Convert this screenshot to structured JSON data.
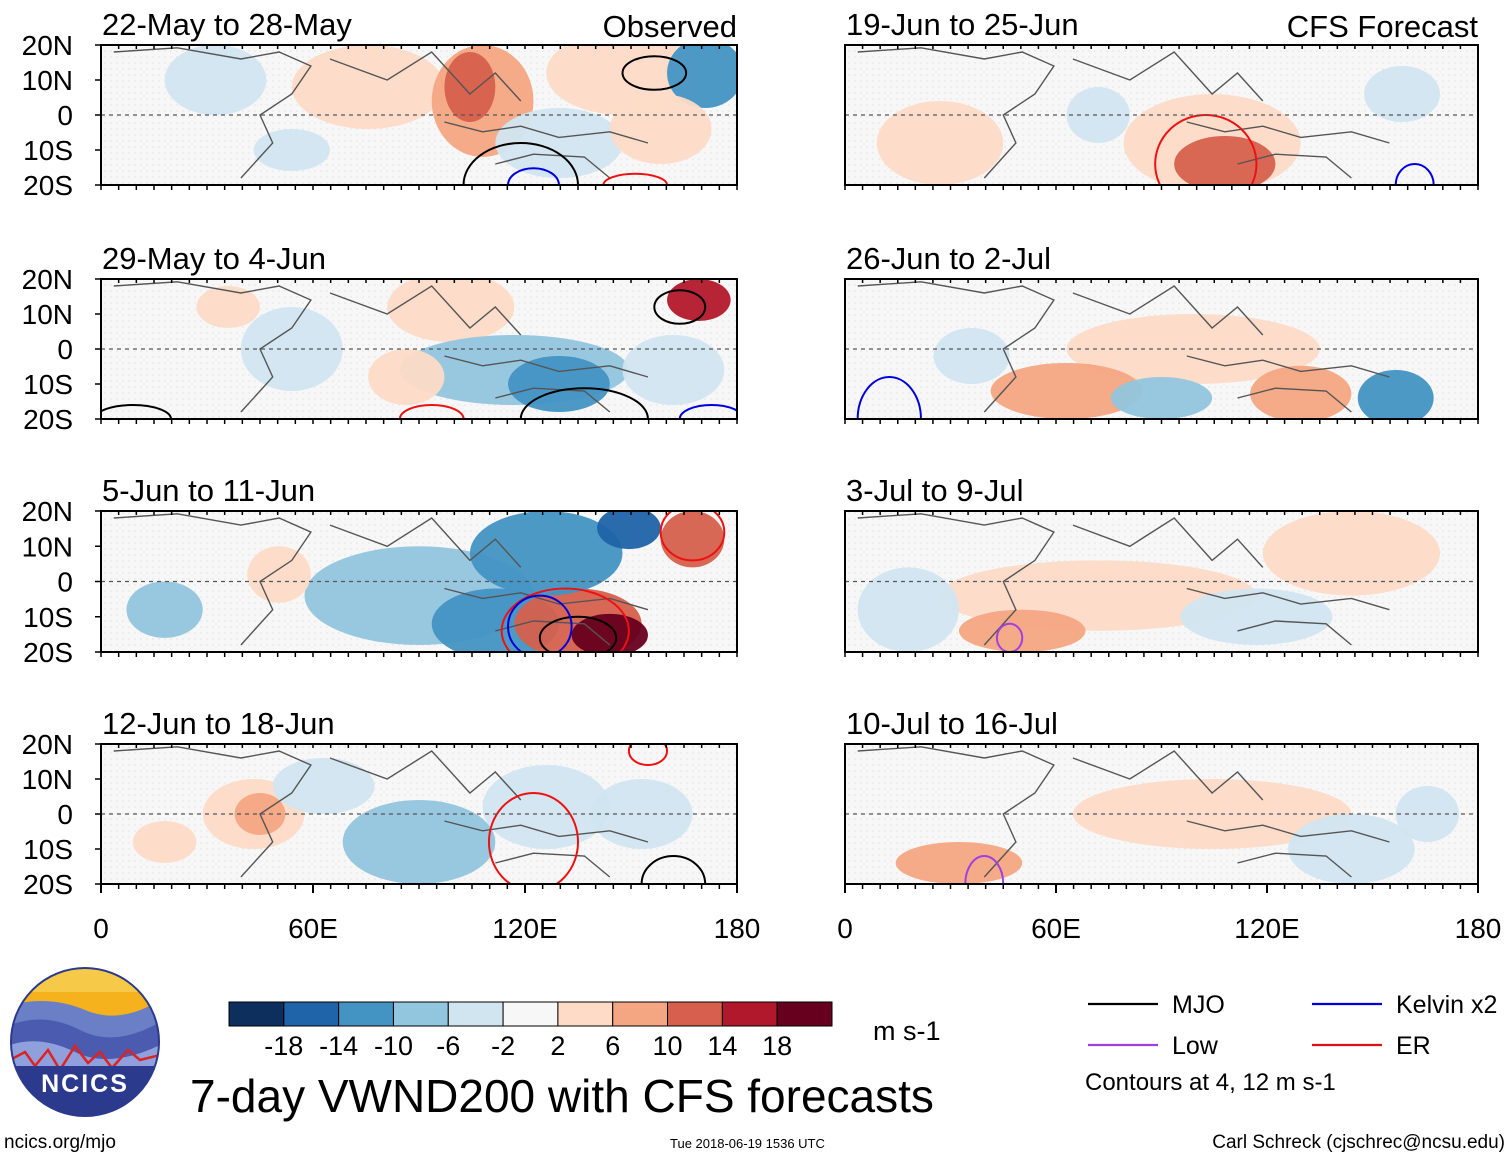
{
  "figure": {
    "title": "7-day VWND200 with CFS forecasts",
    "corner_left": "Observed",
    "corner_right": "CFS Forecast",
    "units": "m s-1",
    "credit_left": "ncics.org/mjo",
    "timestamp": "Tue 2018-06-19 1536 UTC",
    "credit_right": "Carl Schreck (cjschrec@ncsu.edu)",
    "logo_text": "NCICS"
  },
  "chart_data": {
    "type": "heatmap",
    "variable": "200-hPa meridional wind anomaly (VWND200)",
    "x_ticks": [
      "0",
      "60E",
      "120E",
      "180"
    ],
    "y_ticks": [
      "20N",
      "10N",
      "0",
      "10S",
      "20S"
    ],
    "xlim": [
      0,
      180
    ],
    "ylim": [
      -20,
      20
    ],
    "panels": [
      {
        "title": "22-May to 28-May",
        "group": "Observed"
      },
      {
        "title": "29-May to 4-Jun",
        "group": "Observed"
      },
      {
        "title": "5-Jun to 11-Jun",
        "group": "Observed"
      },
      {
        "title": "12-Jun to 18-Jun",
        "group": "Observed"
      },
      {
        "title": "19-Jun to 25-Jun",
        "group": "CFS Forecast"
      },
      {
        "title": "26-Jun to 2-Jul",
        "group": "CFS Forecast"
      },
      {
        "title": "3-Jul to 9-Jul",
        "group": "CFS Forecast"
      },
      {
        "title": "10-Jul to 16-Jul",
        "group": "CFS Forecast"
      }
    ],
    "colorbar": {
      "ticks": [
        "-18",
        "-14",
        "-10",
        "-6",
        "-2",
        "2",
        "6",
        "10",
        "14",
        "18"
      ],
      "colors": [
        "#0c2f5e",
        "#1f63a8",
        "#4393c3",
        "#92c5de",
        "#d1e5f0",
        "#f7f7f7",
        "#fddbc7",
        "#f4a582",
        "#d6604d",
        "#b2182b",
        "#67001f"
      ]
    },
    "legend": [
      {
        "label": "MJO",
        "color": "#000000"
      },
      {
        "label": "Kelvin x2",
        "color": "#0000dd"
      },
      {
        "label": "Low",
        "color": "#a040e0"
      },
      {
        "label": "ER",
        "color": "#e01010"
      }
    ],
    "contour_note": "Contours at 4, 12 m s-1"
  }
}
